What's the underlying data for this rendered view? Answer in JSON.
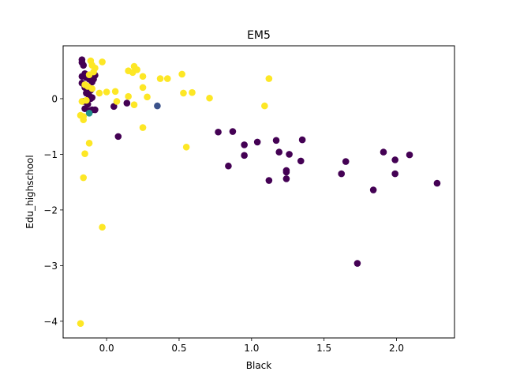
{
  "chart_data": {
    "type": "scatter",
    "title": "EM5",
    "xlabel": "Black",
    "ylabel": "Edu_highschool",
    "xlim": [
      -0.3,
      2.4
    ],
    "ylim": [
      -4.3,
      0.95
    ],
    "xticks": [
      0.0,
      0.5,
      1.0,
      1.5,
      2.0
    ],
    "xtick_labels": [
      "0.0",
      "0.5",
      "1.0",
      "1.5",
      "2.0"
    ],
    "yticks": [
      -4,
      -3,
      -2,
      -1,
      0
    ],
    "ytick_labels": [
      "−4",
      "−3",
      "−2",
      "−1",
      "0"
    ],
    "grid": false,
    "legend": "none",
    "colors": {
      "purple": "#440154",
      "yellow": "#fde725",
      "blue": "#3b528b",
      "teal": "#21918c"
    },
    "series": [
      {
        "color": "#440154",
        "points": [
          [
            -0.17,
            0.7
          ],
          [
            -0.17,
            0.65
          ],
          [
            -0.16,
            0.6
          ],
          [
            -0.17,
            0.4
          ],
          [
            -0.15,
            0.45
          ],
          [
            -0.14,
            0.38
          ],
          [
            -0.12,
            0.35
          ],
          [
            -0.1,
            0.3
          ],
          [
            -0.17,
            0.28
          ],
          [
            -0.15,
            0.2
          ],
          [
            -0.13,
            0.18
          ],
          [
            -0.11,
            0.15
          ],
          [
            -0.09,
            0.35
          ],
          [
            -0.08,
            0.42
          ],
          [
            -0.14,
            0.1
          ],
          [
            -0.12,
            0.05
          ],
          [
            -0.1,
            0.02
          ],
          [
            -0.16,
            -0.05
          ],
          [
            -0.13,
            -0.1
          ],
          [
            -0.15,
            -0.18
          ],
          [
            -0.12,
            -0.22
          ],
          [
            -0.1,
            -0.2
          ],
          [
            -0.08,
            -0.2
          ],
          [
            -0.11,
            0.0
          ],
          [
            0.05,
            -0.14
          ],
          [
            0.14,
            -0.08
          ],
          [
            0.08,
            -0.68
          ],
          [
            0.77,
            -0.6
          ],
          [
            0.87,
            -0.59
          ],
          [
            0.84,
            -1.21
          ],
          [
            0.95,
            -0.83
          ],
          [
            0.95,
            -1.02
          ],
          [
            1.04,
            -0.78
          ],
          [
            1.12,
            -1.47
          ],
          [
            1.17,
            -0.75
          ],
          [
            1.19,
            -0.96
          ],
          [
            1.24,
            -1.29
          ],
          [
            1.24,
            -1.32
          ],
          [
            1.24,
            -1.44
          ],
          [
            1.26,
            -1.0
          ],
          [
            1.34,
            -1.12
          ],
          [
            1.35,
            -0.74
          ],
          [
            1.62,
            -1.35
          ],
          [
            1.65,
            -1.13
          ],
          [
            1.73,
            -2.96
          ],
          [
            1.84,
            -1.64
          ],
          [
            1.91,
            -0.96
          ],
          [
            1.99,
            -1.1
          ],
          [
            1.99,
            -1.35
          ],
          [
            2.09,
            -1.01
          ],
          [
            2.28,
            -1.52
          ]
        ]
      },
      {
        "color": "#fde725",
        "points": [
          [
            -0.11,
            0.68
          ],
          [
            -0.1,
            0.6
          ],
          [
            -0.08,
            0.55
          ],
          [
            -0.03,
            0.66
          ],
          [
            -0.09,
            0.48
          ],
          [
            -0.12,
            0.43
          ],
          [
            -0.15,
            0.25
          ],
          [
            -0.13,
            0.22
          ],
          [
            -0.1,
            0.18
          ],
          [
            -0.05,
            0.1
          ],
          [
            0.0,
            0.12
          ],
          [
            0.06,
            0.13
          ],
          [
            0.15,
            0.5
          ],
          [
            0.18,
            0.47
          ],
          [
            0.19,
            0.58
          ],
          [
            0.21,
            0.52
          ],
          [
            0.25,
            0.4
          ],
          [
            0.25,
            0.2
          ],
          [
            0.28,
            0.03
          ],
          [
            0.15,
            0.04
          ],
          [
            0.19,
            -0.11
          ],
          [
            0.07,
            -0.05
          ],
          [
            0.37,
            0.36
          ],
          [
            0.42,
            0.36
          ],
          [
            0.52,
            0.44
          ],
          [
            0.53,
            0.1
          ],
          [
            0.59,
            0.11
          ],
          [
            0.71,
            0.01
          ],
          [
            1.09,
            -0.13
          ],
          [
            1.12,
            0.36
          ],
          [
            0.25,
            -0.52
          ],
          [
            0.55,
            -0.87
          ],
          [
            -0.17,
            -0.05
          ],
          [
            -0.14,
            -0.03
          ],
          [
            -0.18,
            -0.3
          ],
          [
            -0.16,
            -0.32
          ],
          [
            -0.16,
            -0.38
          ],
          [
            -0.12,
            -0.8
          ],
          [
            -0.15,
            -0.99
          ],
          [
            -0.16,
            -1.42
          ],
          [
            -0.03,
            -2.31
          ],
          [
            -0.18,
            -4.04
          ]
        ]
      },
      {
        "color": "#3b528b",
        "points": [
          [
            0.35,
            -0.13
          ]
        ]
      },
      {
        "color": "#21918c",
        "points": [
          [
            -0.12,
            -0.26
          ]
        ]
      }
    ]
  }
}
